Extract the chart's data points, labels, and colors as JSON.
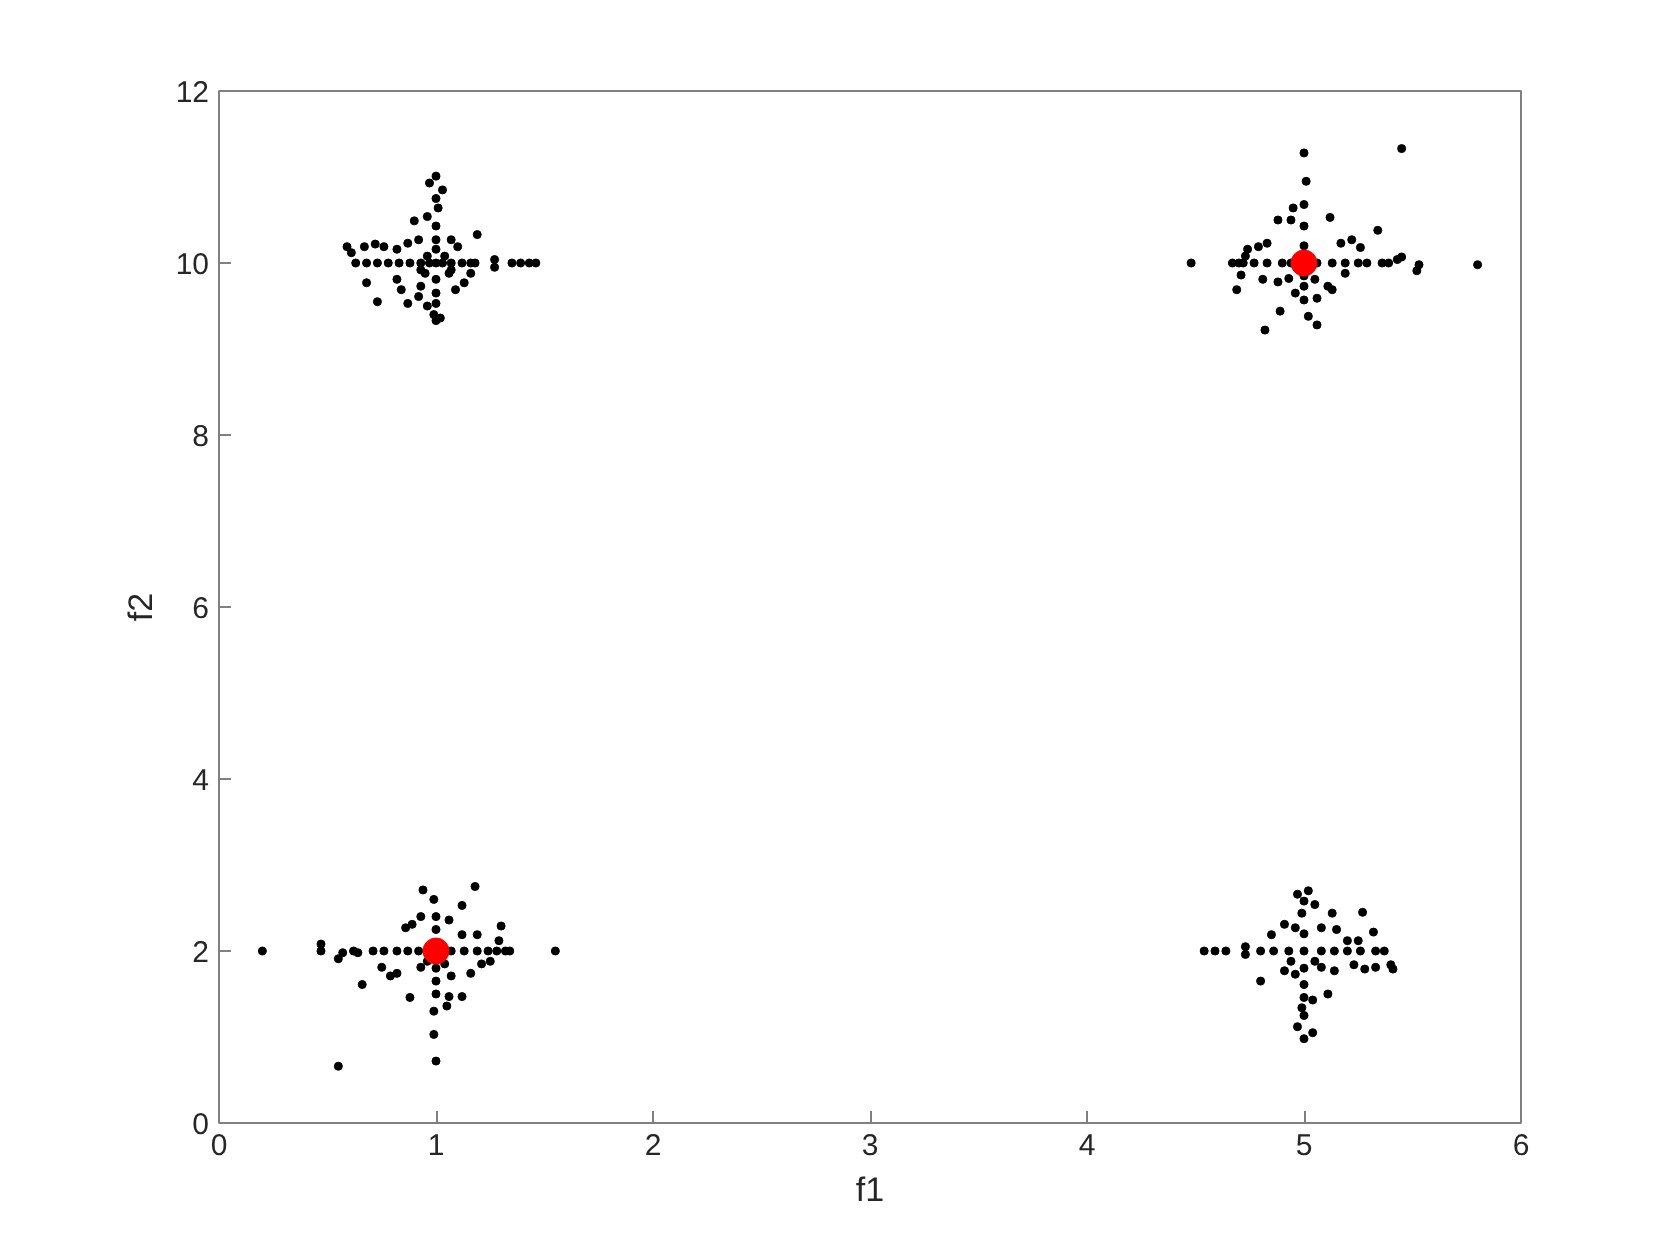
{
  "chart_data": {
    "type": "scatter",
    "xlabel": "f1",
    "ylabel": "f2",
    "xlim": [
      0,
      6
    ],
    "ylim": [
      0,
      12
    ],
    "xticks": [
      0,
      1,
      2,
      3,
      4,
      5,
      6
    ],
    "yticks": [
      0,
      2,
      4,
      6,
      8,
      10,
      12
    ],
    "grid": false,
    "marker": "circle",
    "series": [
      {
        "color": "#000000",
        "x": [
          1.0,
          0.97,
          1.03,
          1.0,
          1.01,
          0.96,
          0.9,
          1.0,
          1.0,
          1.0,
          1.07,
          1.1,
          1.19,
          0.59,
          0.61,
          0.67,
          0.72,
          0.76,
          0.82,
          0.87,
          0.92,
          0.63,
          0.68,
          0.73,
          0.78,
          0.83,
          0.88,
          0.93,
          0.97,
          1.03,
          1.07,
          1.12,
          1.16,
          1.18,
          1.27,
          1.27,
          1.35,
          1.39,
          1.43,
          1.46,
          0.68,
          0.73,
          0.82,
          0.84,
          0.87,
          0.92,
          0.93,
          0.96,
          0.99,
          1.0,
          1.02,
          1.09,
          1.13,
          1.16,
          1.0,
          1.0,
          1.0,
          1.06,
          0.95,
          0.96,
          1.04,
          0.93,
          1.07,
          1.0,
          5.0,
          5.45,
          5.01,
          5.0,
          4.95,
          4.88,
          4.94,
          5.12,
          5.0,
          5.34,
          4.83,
          4.79,
          4.74,
          4.73,
          5.17,
          5.22,
          5.26,
          4.67,
          4.7,
          4.72,
          4.77,
          4.83,
          4.9,
          4.94,
          5.06,
          5.13,
          5.19,
          5.25,
          5.29,
          5.36,
          5.39,
          5.43,
          5.45,
          5.53,
          5.52,
          5.8,
          4.48,
          4.71,
          4.69,
          4.81,
          4.88,
          4.93,
          5.0,
          5.0,
          5.02,
          5.06,
          5.11,
          5.13,
          5.19,
          4.89,
          4.82,
          5.06,
          4.96,
          5.05,
          5.0,
          5.0,
          0.2,
          0.47,
          0.47,
          0.55,
          0.57,
          0.62,
          0.64,
          0.66,
          0.55,
          0.94,
          1.18,
          0.99,
          1.12,
          0.93,
          0.89,
          0.86,
          1.06,
          1.12,
          1.19,
          1.3,
          1.29,
          0.71,
          0.76,
          0.82,
          0.87,
          0.92,
          1.07,
          1.13,
          1.19,
          1.24,
          1.28,
          1.32,
          1.34,
          1.55,
          0.75,
          0.79,
          0.82,
          0.88,
          1.0,
          1.0,
          0.99,
          1.06,
          1.12,
          1.05,
          0.99,
          1.0,
          1.16,
          1.21,
          1.25,
          1.07,
          0.93,
          0.96,
          1.04,
          1.0,
          1.0,
          1.0,
          5.02,
          4.97,
          5.0,
          5.05,
          4.99,
          5.13,
          5.27,
          4.91,
          5.08,
          5.15,
          5.32,
          4.85,
          4.96,
          4.54,
          4.59,
          4.64,
          4.73,
          4.73,
          4.8,
          4.86,
          4.93,
          5.08,
          5.14,
          5.2,
          5.26,
          5.33,
          5.37,
          5.23,
          5.28,
          5.33,
          5.4,
          5.41,
          5.25,
          5.2,
          4.8,
          4.91,
          4.96,
          5.0,
          5.0,
          5.04,
          5.11,
          4.99,
          5.0,
          4.97,
          5.04,
          5.0,
          5.08,
          5.14,
          5.05,
          4.94,
          5.0,
          5.0,
          5.0
        ],
        "values": [
          11.01,
          10.93,
          10.85,
          10.75,
          10.64,
          10.54,
          10.49,
          10.43,
          10.27,
          10.16,
          10.27,
          10.19,
          10.33,
          10.19,
          10.12,
          10.19,
          10.22,
          10.19,
          10.16,
          10.23,
          10.27,
          10,
          10,
          10,
          10,
          10,
          10,
          10,
          10,
          10,
          10,
          10,
          10,
          10,
          10.04,
          9.95,
          10,
          10,
          10,
          10,
          9.77,
          9.55,
          9.81,
          9.69,
          9.53,
          9.61,
          9.73,
          9.5,
          9.4,
          9.33,
          9.36,
          9.69,
          9.77,
          9.88,
          9.81,
          9.65,
          9.53,
          9.88,
          9.88,
          10.08,
          10.08,
          9.92,
          9.92,
          10,
          11.28,
          11.33,
          10.95,
          10.68,
          10.64,
          10.5,
          10.5,
          10.53,
          10.43,
          10.38,
          10.23,
          10.19,
          10.16,
          10.08,
          10.23,
          10.27,
          10.18,
          10,
          10,
          10,
          10,
          10,
          10,
          10,
          10,
          10,
          10,
          10,
          10,
          10,
          10,
          10.04,
          10.07,
          9.98,
          9.91,
          9.98,
          10,
          9.86,
          9.69,
          9.81,
          9.78,
          9.82,
          9.73,
          9.57,
          9.38,
          9.59,
          9.73,
          9.69,
          9.88,
          9.44,
          9.22,
          9.28,
          9.65,
          9.81,
          10.2,
          9.85,
          2.0,
          2.08,
          2.0,
          1.91,
          1.98,
          2.0,
          1.98,
          1.61,
          0.66,
          2.71,
          2.75,
          2.6,
          2.53,
          2.4,
          2.31,
          2.27,
          2.36,
          2.19,
          2.19,
          2.29,
          2.12,
          2,
          2,
          2,
          2,
          2,
          2,
          2,
          2,
          2,
          2,
          2,
          2,
          2,
          1.81,
          1.71,
          1.74,
          1.46,
          1.65,
          1.5,
          1.3,
          1.47,
          1.47,
          1.36,
          1.03,
          0.72,
          1.74,
          1.85,
          1.88,
          1.71,
          1.81,
          1.88,
          1.85,
          2.4,
          2.25,
          1.8,
          2.7,
          2.66,
          2.58,
          2.54,
          2.44,
          2.44,
          2.45,
          2.31,
          2.27,
          2.25,
          2.22,
          2.19,
          2.27,
          2,
          2,
          2,
          2.05,
          1.96,
          2,
          2,
          2,
          2,
          2,
          2,
          2,
          2,
          2,
          1.84,
          1.79,
          1.81,
          1.84,
          1.79,
          2.12,
          2.12,
          1.65,
          1.77,
          1.73,
          1.61,
          1.46,
          1.43,
          1.5,
          1.34,
          1.25,
          1.12,
          1.05,
          0.98,
          1.81,
          1.77,
          1.88,
          1.88,
          2,
          2.2,
          1.8
        ]
      },
      {
        "color": "#ff0000",
        "x": [
          1,
          5
        ],
        "values": [
          2,
          10
        ]
      }
    ]
  }
}
